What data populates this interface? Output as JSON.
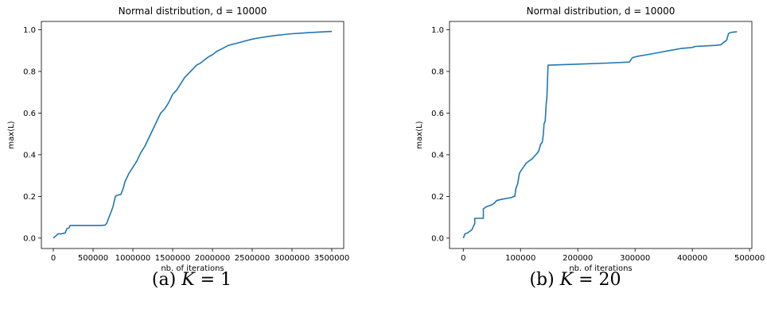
{
  "chart_data": [
    {
      "id": "a",
      "type": "line",
      "title": "Normal distribution, d = 10000",
      "xlabel": "nb. of iterations",
      "ylabel": "max(L)",
      "xlim": [
        -150000,
        3650000
      ],
      "ylim": [
        -0.05,
        1.04
      ],
      "xticks": [
        0,
        500000,
        1000000,
        1500000,
        2000000,
        2500000,
        3000000,
        3500000
      ],
      "yticks": [
        0.0,
        0.2,
        0.4,
        0.6,
        0.8,
        1.0
      ],
      "xtick_labels": [
        "0",
        "500000",
        "1000000",
        "1500000",
        "2000000",
        "2500000",
        "3000000",
        "3500000"
      ],
      "ytick_labels": [
        "0.0",
        "0.2",
        "0.4",
        "0.6",
        "0.8",
        "1.0"
      ],
      "color": "#1f77b4",
      "series": [
        {
          "x": [
            0,
            30000,
            60000,
            100000,
            150000,
            170000,
            200000,
            210000,
            300000,
            400000,
            500000,
            600000,
            650000,
            670000,
            700000,
            750000,
            780000,
            800000,
            850000,
            880000,
            900000,
            950000,
            1000000,
            1050000,
            1100000,
            1150000,
            1200000,
            1250000,
            1300000,
            1350000,
            1400000,
            1450000,
            1500000,
            1550000,
            1600000,
            1650000,
            1700000,
            1750000,
            1800000,
            1850000,
            1900000,
            1950000,
            2000000,
            2050000,
            2100000,
            2150000,
            2200000,
            2250000,
            2300000,
            2400000,
            2500000,
            2600000,
            2700000,
            2800000,
            2900000,
            3000000,
            3200000,
            3400000,
            3500000
          ],
          "y": [
            0.0,
            0.01,
            0.02,
            0.02,
            0.025,
            0.045,
            0.05,
            0.06,
            0.06,
            0.06,
            0.06,
            0.06,
            0.062,
            0.07,
            0.1,
            0.15,
            0.2,
            0.205,
            0.21,
            0.24,
            0.27,
            0.31,
            0.34,
            0.37,
            0.41,
            0.44,
            0.48,
            0.52,
            0.56,
            0.6,
            0.62,
            0.65,
            0.69,
            0.71,
            0.74,
            0.77,
            0.79,
            0.81,
            0.83,
            0.84,
            0.855,
            0.87,
            0.88,
            0.895,
            0.905,
            0.915,
            0.925,
            0.93,
            0.935,
            0.945,
            0.955,
            0.962,
            0.968,
            0.973,
            0.977,
            0.981,
            0.986,
            0.99,
            0.992
          ]
        }
      ],
      "caption_prefix": "(a)",
      "caption_math": "K",
      "caption_suffix": " = 1"
    },
    {
      "id": "b",
      "type": "line",
      "title": "Normal distribution, d = 10000",
      "xlabel": "nb. of iterations",
      "ylabel": "max(L)",
      "xlim": [
        -24000,
        504000
      ],
      "ylim": [
        -0.05,
        1.04
      ],
      "xticks": [
        0,
        100000,
        200000,
        300000,
        400000,
        500000
      ],
      "yticks": [
        0.0,
        0.2,
        0.4,
        0.6,
        0.8,
        1.0
      ],
      "xtick_labels": [
        "0",
        "100000",
        "200000",
        "300000",
        "400000",
        "500000"
      ],
      "ytick_labels": [
        "0.0",
        "0.2",
        "0.4",
        "0.6",
        "0.8",
        "1.0"
      ],
      "color": "#1f77b4",
      "series": [
        {
          "x": [
            0,
            3000,
            8000,
            10000,
            15000,
            20000,
            20000,
            35000,
            35000,
            40000,
            50000,
            55000,
            58000,
            65000,
            75000,
            85000,
            88000,
            90000,
            92000,
            95000,
            98000,
            100000,
            105000,
            110000,
            120000,
            130000,
            132000,
            135000,
            138000,
            140000,
            141000,
            143000,
            145000,
            146000,
            147000,
            148000,
            150000,
            200000,
            250000,
            290000,
            295000,
            300000,
            305000,
            320000,
            340000,
            360000,
            380000,
            400000,
            405000,
            440000,
            450000,
            455000,
            460000,
            463000,
            465000,
            470000,
            478000
          ],
          "y": [
            0.0,
            0.02,
            0.025,
            0.03,
            0.04,
            0.07,
            0.095,
            0.095,
            0.14,
            0.15,
            0.16,
            0.17,
            0.18,
            0.185,
            0.19,
            0.195,
            0.2,
            0.2,
            0.24,
            0.26,
            0.31,
            0.32,
            0.34,
            0.36,
            0.38,
            0.41,
            0.42,
            0.45,
            0.46,
            0.5,
            0.55,
            0.56,
            0.65,
            0.67,
            0.75,
            0.83,
            0.83,
            0.835,
            0.84,
            0.845,
            0.865,
            0.87,
            0.873,
            0.88,
            0.89,
            0.9,
            0.91,
            0.915,
            0.92,
            0.925,
            0.928,
            0.94,
            0.95,
            0.98,
            0.985,
            0.988,
            0.99
          ]
        }
      ],
      "caption_prefix": "(b)",
      "caption_math": "K",
      "caption_suffix": " = 20"
    }
  ]
}
